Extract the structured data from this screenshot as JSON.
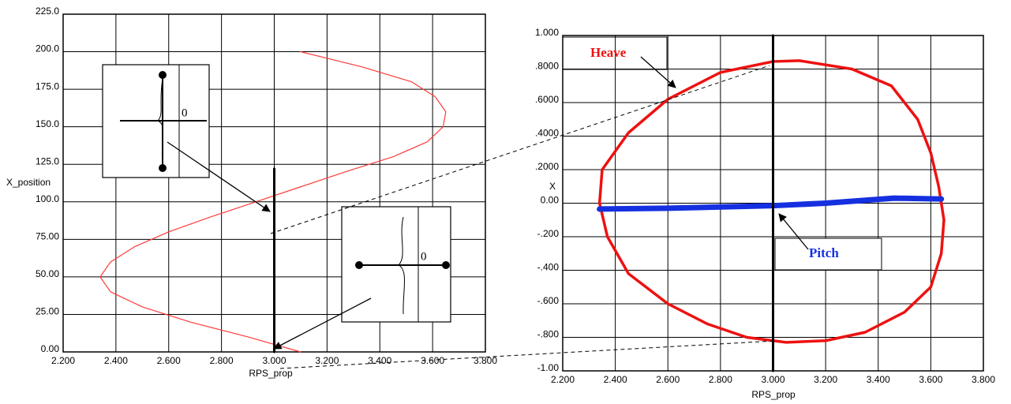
{
  "chart_data": [
    {
      "type": "line",
      "x_label": "RPS_prop",
      "y_label": "X_position",
      "xlim": [
        2.2,
        3.8
      ],
      "xticks": [
        {
          "value": 2.2,
          "label": "2.200"
        },
        {
          "value": 2.4,
          "label": "2.400"
        },
        {
          "value": 2.6,
          "label": "2.600"
        },
        {
          "value": 2.8,
          "label": "2.800"
        },
        {
          "value": 3.0,
          "label": "3.000"
        },
        {
          "value": 3.2,
          "label": "3.200"
        },
        {
          "value": 3.4,
          "label": "3.400"
        },
        {
          "value": 3.6,
          "label": "3.600"
        },
        {
          "value": 3.8,
          "label": "3.800"
        }
      ],
      "ylim": [
        0,
        225
      ],
      "yticks": [
        {
          "value": 0,
          "label": "0.00"
        },
        {
          "value": 25,
          "label": "25.00"
        },
        {
          "value": 50,
          "label": "50.00"
        },
        {
          "value": 75,
          "label": "75.00"
        },
        {
          "value": 100,
          "label": "100.0"
        },
        {
          "value": 125,
          "label": "125.0"
        },
        {
          "value": 150,
          "label": "150.0"
        },
        {
          "value": 175,
          "label": "175.0"
        },
        {
          "value": 200,
          "label": "200.0"
        },
        {
          "value": 225,
          "label": "225.0"
        }
      ],
      "grid": true,
      "annotations": [
        "0",
        "0"
      ],
      "series": [
        {
          "color": "#ff3b3b",
          "x": [
            3.1,
            3.33,
            3.52,
            3.61,
            3.65,
            3.64,
            3.58,
            3.45,
            3.27,
            3.1,
            2.93,
            2.76,
            2.6,
            2.47,
            2.38,
            2.34,
            2.38,
            2.5,
            2.68,
            2.9,
            3.1
          ],
          "values": [
            200,
            190,
            180,
            170,
            160,
            150,
            140,
            130,
            120,
            110,
            100,
            90,
            80,
            70,
            60,
            50,
            40,
            30,
            20,
            10,
            0
          ]
        },
        {
          "color": "#000000",
          "x": [
            3.0,
            3.0
          ],
          "values": [
            0,
            122
          ]
        }
      ]
    },
    {
      "type": "line",
      "x_label": "RPS_prop",
      "y_label": "X",
      "xlim": [
        2.2,
        3.8
      ],
      "xticks": [
        {
          "value": 2.2,
          "label": "2.200"
        },
        {
          "value": 2.4,
          "label": "2.400"
        },
        {
          "value": 2.6,
          "label": "2.600"
        },
        {
          "value": 2.8,
          "label": "2.800"
        },
        {
          "value": 3.0,
          "label": "3.000"
        },
        {
          "value": 3.2,
          "label": "3.200"
        },
        {
          "value": 3.4,
          "label": "3.400"
        },
        {
          "value": 3.6,
          "label": "3.600"
        },
        {
          "value": 3.8,
          "label": "3.800"
        }
      ],
      "ylim": [
        -1,
        1
      ],
      "yticks": [
        {
          "value": -1,
          "label": "-1.00"
        },
        {
          "value": -0.8,
          "label": "-.800"
        },
        {
          "value": -0.6,
          "label": "-.600"
        },
        {
          "value": -0.4,
          "label": "-.400"
        },
        {
          "value": -0.2,
          "label": "-.200"
        },
        {
          "value": 0,
          "label": "0.00"
        },
        {
          "value": 0.2,
          "label": ".2000"
        },
        {
          "value": 0.4,
          "label": ".4000"
        },
        {
          "value": 0.6,
          "label": ".6000"
        },
        {
          "value": 0.8,
          "label": ".8000"
        },
        {
          "value": 1,
          "label": "1.000"
        }
      ],
      "grid": true,
      "series": [
        {
          "name": "Heave",
          "color": "#ee1111",
          "x": [
            2.35,
            2.45,
            2.6,
            2.8,
            3.0,
            3.1,
            3.3,
            3.45,
            3.55,
            3.6,
            3.63,
            3.65,
            3.64,
            3.6,
            3.5,
            3.35,
            3.2,
            3.05,
            2.9,
            2.75,
            2.6,
            2.45,
            2.37,
            2.34,
            2.35
          ],
          "values": [
            0.2,
            0.42,
            0.62,
            0.78,
            0.845,
            0.85,
            0.8,
            0.7,
            0.5,
            0.3,
            0.1,
            -0.1,
            -0.3,
            -0.5,
            -0.65,
            -0.77,
            -0.82,
            -0.83,
            -0.8,
            -0.72,
            -0.6,
            -0.42,
            -0.2,
            0.0,
            0.2
          ]
        },
        {
          "name": "Pitch",
          "color": "#1530e0",
          "x": [
            2.34,
            2.6,
            3.0,
            3.2,
            3.46,
            3.64
          ],
          "values": [
            -0.035,
            -0.03,
            -0.015,
            0.0,
            0.03,
            0.025
          ]
        },
        {
          "color": "#000000",
          "x": [
            3.0,
            3.0
          ],
          "values": [
            -1,
            1
          ]
        }
      ]
    }
  ]
}
